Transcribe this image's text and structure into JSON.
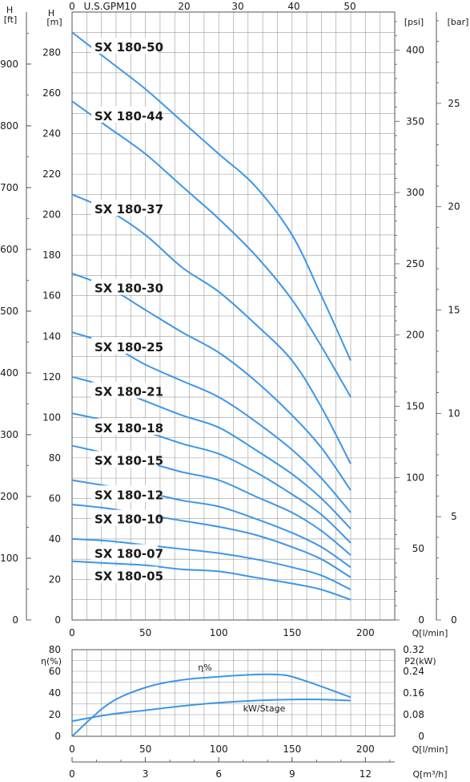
{
  "chart_data": [
    {
      "type": "line",
      "title": "",
      "xlabel": "Q[l/min]",
      "ylabel": "H [m]",
      "xlim": [
        0,
        220
      ],
      "ylim": [
        0,
        300
      ],
      "grid": true,
      "x_ticks": [
        0,
        50,
        100,
        150,
        200
      ],
      "y_ticks": [
        0,
        20,
        40,
        60,
        80,
        100,
        120,
        140,
        160,
        180,
        200,
        220,
        240,
        260,
        280
      ],
      "y_axis_label_top": "H",
      "y_axis_unit": "[m]",
      "secondary_axes": {
        "top_usgpm": {
          "label": "U.S.GPM",
          "ticks": [
            "0",
            "10",
            "20",
            "30",
            "40",
            "50"
          ]
        },
        "left_ft": {
          "label": "H",
          "unit": "[ft]",
          "ticks": [
            "0",
            "100",
            "200",
            "300",
            "400",
            "500",
            "600",
            "700",
            "800",
            "900"
          ]
        },
        "right_psi": {
          "unit": "[psi]",
          "ticks": [
            "0",
            "50",
            "100",
            "150",
            "200",
            "250",
            "300",
            "350",
            "400"
          ]
        },
        "right_bar": {
          "unit": "[bar]",
          "ticks": [
            "0",
            "5",
            "10",
            "15",
            "20",
            "25"
          ]
        }
      },
      "series": [
        {
          "name": "SX 180-50",
          "x": [
            0,
            25,
            50,
            75,
            100,
            125,
            150,
            170,
            190
          ],
          "values": [
            290,
            276,
            262,
            246,
            230,
            214,
            190,
            160,
            128
          ]
        },
        {
          "name": "SX 180-44",
          "x": [
            0,
            25,
            50,
            75,
            100,
            125,
            150,
            170,
            190
          ],
          "values": [
            256,
            243,
            230,
            214,
            198,
            180,
            158,
            135,
            110
          ]
        },
        {
          "name": "SX 180-37",
          "x": [
            0,
            25,
            50,
            75,
            100,
            125,
            150,
            170,
            190
          ],
          "values": [
            210,
            202,
            190,
            174,
            162,
            146,
            128,
            105,
            77
          ]
        },
        {
          "name": "SX 180-30",
          "x": [
            0,
            25,
            50,
            75,
            100,
            125,
            150,
            170,
            190
          ],
          "values": [
            171,
            164,
            153,
            142,
            132,
            118,
            101,
            85,
            64
          ]
        },
        {
          "name": "SX 180-25",
          "x": [
            0,
            25,
            50,
            75,
            100,
            125,
            150,
            170,
            190
          ],
          "values": [
            142,
            136,
            126,
            118,
            110,
            98,
            84,
            70,
            53
          ]
        },
        {
          "name": "SX 180-21",
          "x": [
            0,
            25,
            50,
            75,
            100,
            125,
            150,
            170,
            190
          ],
          "values": [
            120,
            115,
            108,
            101,
            95,
            84,
            72,
            60,
            45
          ]
        },
        {
          "name": "SX 180-18",
          "x": [
            0,
            25,
            50,
            75,
            100,
            125,
            150,
            170,
            190
          ],
          "values": [
            102,
            98,
            93,
            87,
            82,
            73,
            62,
            52,
            38
          ]
        },
        {
          "name": "SX 180-15",
          "x": [
            0,
            25,
            50,
            75,
            100,
            125,
            150,
            170,
            190
          ],
          "values": [
            86,
            82,
            78,
            73,
            69,
            61,
            53,
            44,
            32
          ]
        },
        {
          "name": "SX 180-12",
          "x": [
            0,
            25,
            50,
            75,
            100,
            125,
            150,
            170,
            190
          ],
          "values": [
            69,
            66,
            63,
            59,
            56,
            50,
            43,
            36,
            26
          ]
        },
        {
          "name": "SX 180-10",
          "x": [
            0,
            25,
            50,
            75,
            100,
            125,
            150,
            170,
            190
          ],
          "values": [
            57,
            55,
            52,
            49,
            46,
            42,
            36,
            30,
            21
          ]
        },
        {
          "name": "SX 180-07",
          "x": [
            0,
            25,
            50,
            75,
            100,
            125,
            150,
            170,
            190
          ],
          "values": [
            40,
            39,
            37,
            35,
            33,
            30,
            26,
            22,
            15
          ]
        },
        {
          "name": "SX 180-05",
          "x": [
            0,
            25,
            50,
            75,
            100,
            125,
            150,
            170,
            190
          ],
          "values": [
            29,
            28,
            27,
            25,
            24,
            21,
            18,
            15,
            10
          ]
        }
      ]
    },
    {
      "type": "line",
      "title": "",
      "xlabel": "Q[l/min]",
      "ylabel": "η(%)",
      "xlim": [
        0,
        220
      ],
      "ylim": [
        0,
        80
      ],
      "grid": true,
      "x_ticks": [
        0,
        50,
        100,
        150,
        200
      ],
      "y_ticks": [
        0,
        20,
        40,
        60,
        80
      ],
      "secondary_axes": {
        "right_p2": {
          "label": "P2(kW)",
          "ticks": [
            "0",
            "0.08",
            "0.16",
            "0.24",
            "0.32"
          ]
        },
        "bottom_m3h": {
          "label": "Q[m³/h]",
          "ticks": [
            "0",
            "3",
            "6",
            "9",
            "12"
          ]
        }
      },
      "series": [
        {
          "name": "η%",
          "x": [
            0,
            25,
            50,
            75,
            100,
            125,
            140,
            150,
            170,
            190
          ],
          "values": [
            0,
            30,
            45,
            52,
            55,
            57,
            57,
            55,
            46,
            36
          ]
        },
        {
          "name": "kW/Stage",
          "x": [
            0,
            25,
            50,
            75,
            100,
            125,
            150,
            170,
            190
          ],
          "values": [
            14,
            20,
            24,
            28,
            31,
            33,
            34,
            34,
            33
          ]
        }
      ]
    }
  ]
}
